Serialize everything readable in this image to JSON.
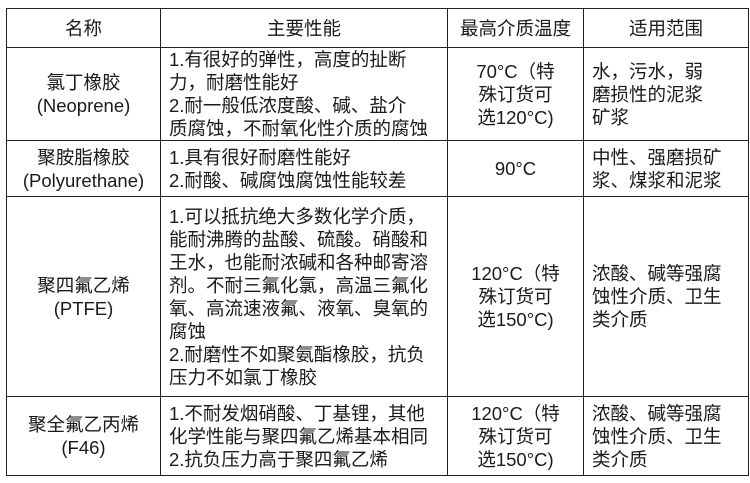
{
  "headers": [
    "名称",
    "主要性能",
    "最高介质温度",
    "适用范围"
  ],
  "rows": [
    {
      "name": [
        "氯丁橡胶",
        "(Neoprene)"
      ],
      "performance": [
        "1.有很好的弹性，高度的扯断",
        "力，耐磨性能好",
        "2.耐一般低浓度酸、碱、盐介",
        "质腐蚀，不耐氧化性介质的腐蚀"
      ],
      "temperature": [
        "70°C（特",
        "殊订货可",
        "选120°C)"
      ],
      "scope": [
        "水，污水，弱",
        "磨损性的泥浆",
        "矿浆"
      ]
    },
    {
      "name": [
        "聚胺脂橡胶",
        "(Polyurethane)"
      ],
      "performance": [
        "1.具有很好耐磨性能好",
        "2.耐酸、碱腐蚀腐蚀性能较差"
      ],
      "temperature": [
        "90°C"
      ],
      "scope": [
        "中性、强磨损矿",
        "浆、煤浆和泥浆"
      ]
    },
    {
      "name": [
        "聚四氟乙烯",
        "(PTFE)"
      ],
      "performance": [
        "1.可以抵抗绝大多数化学介质，",
        "能耐沸腾的盐酸、硫酸。硝酸和",
        "王水，也能耐浓碱和各种邮寄溶",
        "剂。不耐三氟化氯，高温三氟化",
        "氧、高流速液氟、液氧、臭氧的",
        "腐蚀",
        "2.耐磨性不如聚氨酯橡胶，抗负",
        "压力不如氯丁橡胶"
      ],
      "temperature": [
        "120°C（特",
        "殊订货可",
        "选150°C)"
      ],
      "scope": [
        "浓酸、碱等强腐",
        "蚀性介质、卫生",
        "类介质"
      ]
    },
    {
      "name": [
        "聚全氟乙丙烯",
        "(F46)"
      ],
      "performance": [
        "1.不耐发烟硝酸、丁基锂，其他",
        "化学性能与聚四氟乙烯基本相同",
        "2.抗负压力高于聚四氟乙烯"
      ],
      "temperature": [
        "120°C（特",
        "殊订货可",
        "选150°C)"
      ],
      "scope": [
        "浓酸、碱等强腐",
        "蚀性介质、卫生",
        "类介质"
      ]
    }
  ]
}
